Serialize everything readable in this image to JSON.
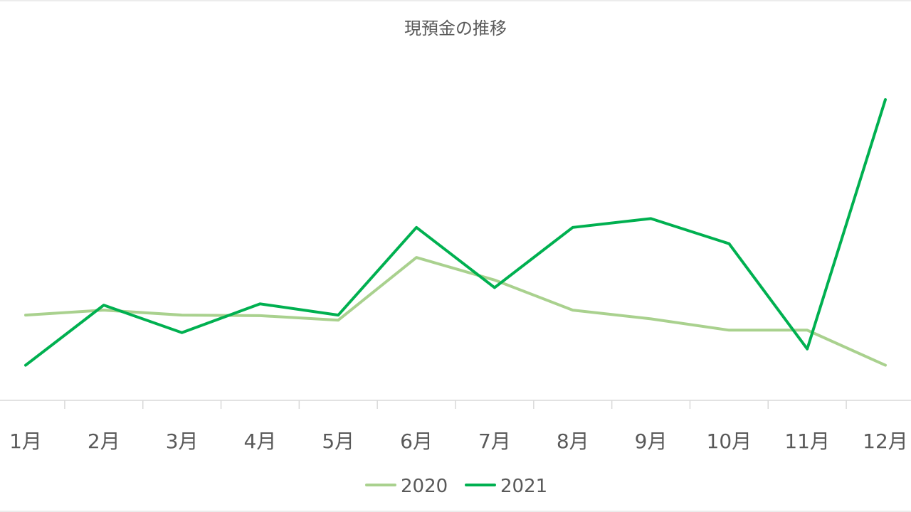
{
  "chart_data": {
    "type": "line",
    "title": "現預金の推移",
    "xlabel": "",
    "ylabel": "",
    "categories": [
      "1月",
      "2月",
      "3月",
      "4月",
      "5月",
      "6月",
      "7月",
      "8月",
      "9月",
      "10月",
      "11月",
      "12月"
    ],
    "series": [
      {
        "name": "2020",
        "color": "#a9d18e",
        "values": [
          34,
          36,
          34,
          33.8,
          32,
          57,
          48,
          36,
          32.5,
          28,
          28,
          14
        ]
      },
      {
        "name": "2021",
        "color": "#00b050",
        "values": [
          14,
          38,
          27,
          38.5,
          34,
          69,
          45,
          69,
          72.5,
          62.5,
          20.5,
          120
        ]
      }
    ],
    "ylim": [
      0,
      120
    ],
    "grid": false,
    "y_axis_visible": false,
    "legend_position": "bottom"
  }
}
